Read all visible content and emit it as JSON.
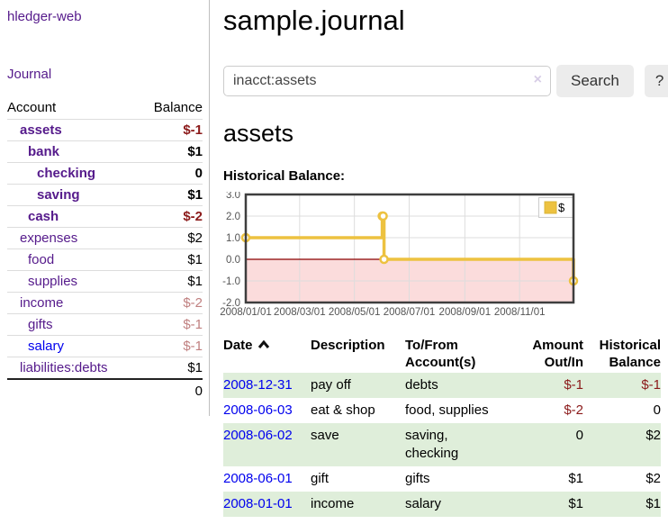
{
  "colors": {
    "link_purple": "#551a8b",
    "link_blue": "#0000ee",
    "negative_strong": "#8b1a1a",
    "negative_soft": "#c08080",
    "row_stripe_green": "#dfeeda",
    "chart_line": "#edc240",
    "chart_negative_region": "#fbdcdc",
    "chart_zero_line": "#8b0000"
  },
  "sidebar": {
    "brand": "hledger-web",
    "nav": {
      "journal": "Journal"
    },
    "accounts_table": {
      "headers": [
        "Account",
        "Balance"
      ],
      "rows": [
        {
          "account": "assets",
          "balance": "$-1",
          "depth": 1,
          "bold": true,
          "balance_style": "neg-strong"
        },
        {
          "account": "bank",
          "balance": "$1",
          "depth": 2,
          "bold": true,
          "balance_style": "normal"
        },
        {
          "account": "checking",
          "balance": "0",
          "depth": 3,
          "bold": true,
          "balance_style": "normal"
        },
        {
          "account": "saving",
          "balance": "$1",
          "depth": 3,
          "bold": true,
          "balance_style": "normal"
        },
        {
          "account": "cash",
          "balance": "$-2",
          "depth": 2,
          "bold": true,
          "balance_style": "neg-strong"
        },
        {
          "account": "expenses",
          "balance": "$2",
          "depth": 1,
          "bold": false,
          "balance_style": "normal"
        },
        {
          "account": "food",
          "balance": "$1",
          "depth": 2,
          "bold": false,
          "balance_style": "normal"
        },
        {
          "account": "supplies",
          "balance": "$1",
          "depth": 2,
          "bold": false,
          "balance_style": "normal"
        },
        {
          "account": "income",
          "balance": "$-2",
          "depth": 1,
          "bold": false,
          "balance_style": "neg-soft"
        },
        {
          "account": "gifts",
          "balance": "$-1",
          "depth": 2,
          "bold": false,
          "balance_style": "neg-soft"
        },
        {
          "account": "salary",
          "balance": "$-1",
          "depth": 2,
          "bold": false,
          "balance_style": "neg-soft"
        },
        {
          "account": "liabilities:debts",
          "balance": "$1",
          "depth": 1,
          "bold": false,
          "balance_style": "normal"
        }
      ],
      "total": "0"
    }
  },
  "header": {
    "title": "sample.journal"
  },
  "search": {
    "value": "inacct:assets",
    "clear_icon": "×",
    "button_label": "Search",
    "help_label": "?"
  },
  "account_page": {
    "heading": "assets",
    "chart_label": "Historical Balance:"
  },
  "chart_data": {
    "type": "line",
    "steps": true,
    "title": "Historical Balance:",
    "legend": "$",
    "legend_position": "top-right",
    "grid": true,
    "ylim": [
      -2,
      3
    ],
    "yticks": [
      "3.0",
      "2.0",
      "1.0",
      "0.0",
      "-1.0",
      "-2.0"
    ],
    "x_range": [
      "2008-01-01",
      "2008-12-31"
    ],
    "xticks": [
      "2008/01/01",
      "2008/03/01",
      "2008/05/01",
      "2008/07/01",
      "2008/09/01",
      "2008/11/01"
    ],
    "series": [
      {
        "name": "$",
        "color": "#edc240",
        "points": [
          {
            "date": "2008-01-01",
            "value": 1
          },
          {
            "date": "2008-06-01",
            "value": 2
          },
          {
            "date": "2008-06-02",
            "value": 2
          },
          {
            "date": "2008-06-03",
            "value": 0
          },
          {
            "date": "2008-12-31",
            "value": -1
          }
        ]
      }
    ],
    "negative_region_color": "#fbdcdc",
    "zero_line_color": "#8b0000"
  },
  "register": {
    "headers": [
      "Date",
      "Description",
      "To/From Account(s)",
      "Amount Out/In",
      "Historical Balance"
    ],
    "rows": [
      {
        "date": "2008-12-31",
        "description": "pay off",
        "accounts": "debts",
        "amount": "$-1",
        "amount_negative": true,
        "balance": "$-1",
        "balance_negative": true
      },
      {
        "date": "2008-06-03",
        "description": "eat & shop",
        "accounts": "food, supplies",
        "amount": "$-2",
        "amount_negative": true,
        "balance": "0",
        "balance_negative": false
      },
      {
        "date": "2008-06-02",
        "description": "save",
        "accounts": "saving, checking",
        "amount": "0",
        "amount_negative": false,
        "balance": "$2",
        "balance_negative": false
      },
      {
        "date": "2008-06-01",
        "description": "gift",
        "accounts": "gifts",
        "amount": "$1",
        "amount_negative": false,
        "balance": "$2",
        "balance_negative": false
      },
      {
        "date": "2008-01-01",
        "description": "income",
        "accounts": "salary",
        "amount": "$1",
        "amount_negative": false,
        "balance": "$1",
        "balance_negative": false
      }
    ]
  }
}
